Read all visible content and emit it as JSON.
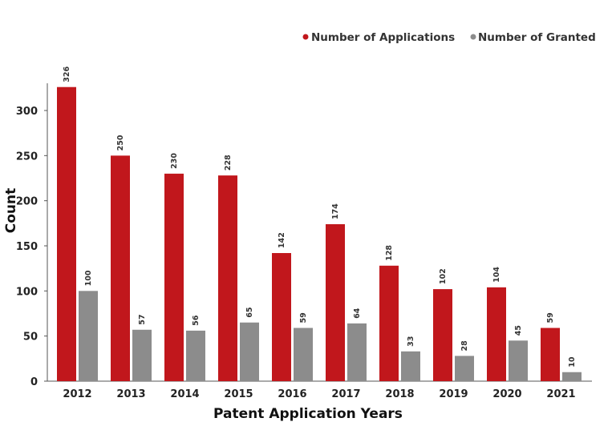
{
  "chart_data": {
    "type": "bar",
    "title": "",
    "xlabel": "Patent Application Years",
    "ylabel": "Count",
    "categories": [
      "2012",
      "2013",
      "2014",
      "2015",
      "2016",
      "2017",
      "2018",
      "2019",
      "2020",
      "2021"
    ],
    "series": [
      {
        "name": "Number of Applications",
        "color": "#c1171c",
        "values": [
          326,
          250,
          230,
          228,
          142,
          174,
          128,
          102,
          104,
          59
        ]
      },
      {
        "name": "Number of Granted",
        "color": "#8c8c8c",
        "values": [
          100,
          57,
          56,
          65,
          59,
          64,
          33,
          28,
          45,
          10
        ]
      }
    ],
    "ylim": [
      0,
      330
    ],
    "yticks": [
      0,
      50,
      100,
      150,
      200,
      250,
      300
    ],
    "grid": false,
    "legend_position": "top-right",
    "data_labels": true
  }
}
